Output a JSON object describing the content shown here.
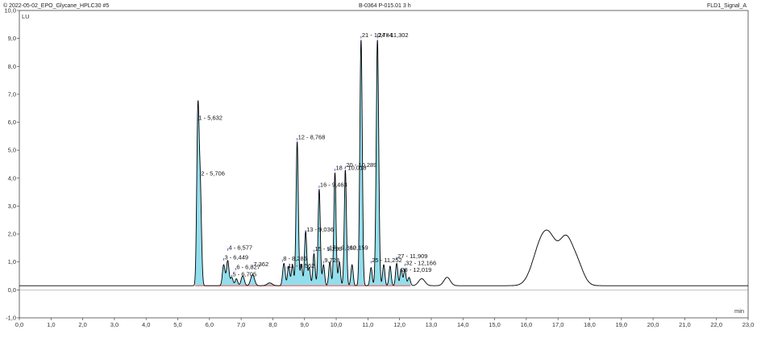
{
  "header": {
    "left_title": "© 2022-05-02_EPO_Glycane_HPLC30 #5",
    "center_title": "B-0364 P-015.01 3 h",
    "right_title": "FLD1_Signal_A"
  },
  "chart_data": {
    "type": "line",
    "title": "",
    "xlabel": "min",
    "ylabel": "LU",
    "xlim": [
      0.0,
      23.0
    ],
    "ylim": [
      -1.0,
      10.0
    ],
    "x_ticks": [
      "0,0",
      "1,0",
      "2,0",
      "3,0",
      "4,0",
      "5,0",
      "6,0",
      "7,0",
      "8,0",
      "9,0",
      "10,0",
      "11,0",
      "12,0",
      "13,0",
      "14,0",
      "15,0",
      "16,0",
      "17,0",
      "18,0",
      "19,0",
      "20,0",
      "21,0",
      "22,0",
      "23,0"
    ],
    "y_ticks": [
      "-1,0",
      "0,0",
      "1,0",
      "2,0",
      "3,0",
      "4,0",
      "5,0",
      "6,0",
      "7,0",
      "8,0",
      "9,0",
      "10,0"
    ],
    "baseline": 0.15,
    "colors": {
      "trace": "#000000",
      "fill": "#6fd3e6",
      "baseline": "#ff3030",
      "marker": "#1a2fd0"
    },
    "series": [
      {
        "peaks": [
          {
            "t": 5.632,
            "h": 6.0,
            "w": 0.035
          },
          {
            "t": 5.706,
            "h": 3.8,
            "w": 0.04
          },
          {
            "t": 6.449,
            "h": 0.9,
            "w": 0.04
          },
          {
            "t": 6.577,
            "h": 1.05,
            "w": 0.04
          },
          {
            "t": 6.705,
            "h": 0.45,
            "w": 0.04
          },
          {
            "t": 6.85,
            "h": 0.4,
            "w": 0.04
          },
          {
            "t": 7.05,
            "h": 0.5,
            "w": 0.05
          },
          {
            "t": 7.362,
            "h": 0.55,
            "w": 0.06
          },
          {
            "t": 7.9,
            "h": 0.25,
            "w": 0.08
          },
          {
            "t": 8.35,
            "h": 0.95,
            "w": 0.04
          },
          {
            "t": 8.5,
            "h": 0.85,
            "w": 0.035
          },
          {
            "t": 8.62,
            "h": 0.9,
            "w": 0.035
          },
          {
            "t": 8.768,
            "h": 5.3,
            "w": 0.035
          },
          {
            "t": 8.9,
            "h": 0.9,
            "w": 0.035
          },
          {
            "t": 9.036,
            "h": 2.1,
            "w": 0.035
          },
          {
            "t": 9.15,
            "h": 0.8,
            "w": 0.035
          },
          {
            "t": 9.298,
            "h": 1.3,
            "w": 0.035
          },
          {
            "t": 9.463,
            "h": 3.6,
            "w": 0.035
          },
          {
            "t": 9.6,
            "h": 0.9,
            "w": 0.035
          },
          {
            "t": 9.8,
            "h": 1.0,
            "w": 0.035
          },
          {
            "t": 9.96,
            "h": 4.2,
            "w": 0.035
          },
          {
            "t": 10.1,
            "h": 1.0,
            "w": 0.035
          },
          {
            "t": 10.289,
            "h": 4.3,
            "w": 0.035
          },
          {
            "t": 10.5,
            "h": 0.9,
            "w": 0.035
          },
          {
            "t": 10.784,
            "h": 8.95,
            "w": 0.038
          },
          {
            "t": 11.1,
            "h": 0.8,
            "w": 0.035
          },
          {
            "t": 11.302,
            "h": 8.95,
            "w": 0.04
          },
          {
            "t": 11.5,
            "h": 0.9,
            "w": 0.035
          },
          {
            "t": 11.7,
            "h": 0.85,
            "w": 0.035
          },
          {
            "t": 11.909,
            "h": 0.95,
            "w": 0.035
          },
          {
            "t": 12.05,
            "h": 0.75,
            "w": 0.035
          },
          {
            "t": 12.166,
            "h": 0.75,
            "w": 0.035
          },
          {
            "t": 12.3,
            "h": 0.45,
            "w": 0.04
          },
          {
            "t": 12.7,
            "h": 0.4,
            "w": 0.1
          },
          {
            "t": 13.5,
            "h": 0.45,
            "w": 0.1
          },
          {
            "t": 16.4,
            "h": 1.2,
            "w": 0.25
          },
          {
            "t": 16.75,
            "h": 1.6,
            "w": 0.25
          },
          {
            "t": 17.25,
            "h": 1.6,
            "w": 0.2
          },
          {
            "t": 17.6,
            "h": 0.9,
            "w": 0.2
          }
        ]
      }
    ],
    "peak_labels": [
      {
        "text": "1 - 5,632",
        "t": 5.632,
        "y": 6.05
      },
      {
        "text": "2 - 5,706",
        "t": 5.706,
        "y": 4.05
      },
      {
        "text": "3 - 6,449",
        "t": 6.449,
        "y": 1.05
      },
      {
        "text": "4 - 6,577",
        "t": 6.577,
        "y": 1.4
      },
      {
        "text": "5 - 6,705",
        "t": 6.705,
        "y": 0.45
      },
      {
        "text": "6 - 6,827",
        "t": 6.827,
        "y": 0.7
      },
      {
        "text": "7,362",
        "t": 7.362,
        "y": 0.8
      },
      {
        "text": "8 - 8,286",
        "t": 8.3,
        "y": 1.0
      },
      {
        "text": "11 - 8,562",
        "t": 8.45,
        "y": 0.75
      },
      {
        "text": "12 - 8,768",
        "t": 8.768,
        "y": 5.35
      },
      {
        "text": "13 - 9,036",
        "t": 9.036,
        "y": 2.05
      },
      {
        "text": "15 - 9,298",
        "t": 9.298,
        "y": 1.35
      },
      {
        "text": "16 - 9,463",
        "t": 9.463,
        "y": 3.65
      },
      {
        "text": "9,728",
        "t": 9.6,
        "y": 0.95
      },
      {
        "text": "17 - 9,862",
        "t": 9.75,
        "y": 1.4
      },
      {
        "text": "18 - 10,018",
        "t": 9.96,
        "y": 4.25
      },
      {
        "text": "20 - 10,289",
        "t": 10.289,
        "y": 4.35
      },
      {
        "text": "10,159",
        "t": 10.4,
        "y": 1.4
      },
      {
        "text": "21 - 10,784",
        "t": 10.784,
        "y": 9.0
      },
      {
        "text": "24 - 11,302",
        "t": 11.302,
        "y": 9.0
      },
      {
        "text": "25 - 11,252",
        "t": 11.1,
        "y": 0.95
      },
      {
        "text": "27 - 11,909",
        "t": 11.909,
        "y": 1.1
      },
      {
        "text": "32 - 12,166",
        "t": 12.166,
        "y": 0.85
      },
      {
        "text": "28 - 12,019",
        "t": 12.019,
        "y": 0.6
      }
    ]
  }
}
